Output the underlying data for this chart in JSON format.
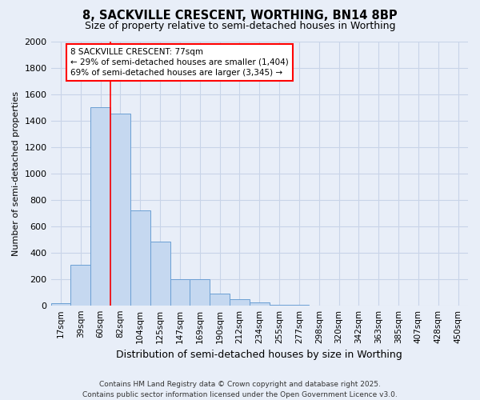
{
  "title1": "8, SACKVILLE CRESCENT, WORTHING, BN14 8BP",
  "title2": "Size of property relative to semi-detached houses in Worthing",
  "xlabel": "Distribution of semi-detached houses by size in Worthing",
  "ylabel": "Number of semi-detached properties",
  "bin_labels": [
    "17sqm",
    "39sqm",
    "60sqm",
    "82sqm",
    "104sqm",
    "125sqm",
    "147sqm",
    "169sqm",
    "190sqm",
    "212sqm",
    "234sqm",
    "255sqm",
    "277sqm",
    "298sqm",
    "320sqm",
    "342sqm",
    "363sqm",
    "385sqm",
    "407sqm",
    "428sqm",
    "450sqm"
  ],
  "bar_values": [
    15,
    310,
    1500,
    1450,
    720,
    480,
    195,
    195,
    90,
    45,
    20,
    5,
    3,
    0,
    0,
    0,
    0,
    0,
    0,
    0,
    0
  ],
  "bar_color": "#c5d8f0",
  "bar_edge_color": "#6b9fd4",
  "red_line_x": 2.5,
  "annotation_title": "8 SACKVILLE CRESCENT: 77sqm",
  "annotation_line1": "← 29% of semi-detached houses are smaller (1,404)",
  "annotation_line2": "69% of semi-detached houses are larger (3,345) →",
  "ylim": [
    0,
    2000
  ],
  "yticks": [
    0,
    200,
    400,
    600,
    800,
    1000,
    1200,
    1400,
    1600,
    1800,
    2000
  ],
  "footer1": "Contains HM Land Registry data © Crown copyright and database right 2025.",
  "footer2": "Contains public sector information licensed under the Open Government Licence v3.0.",
  "bg_color": "#e8eef8",
  "grid_color": "#c8d4e8"
}
